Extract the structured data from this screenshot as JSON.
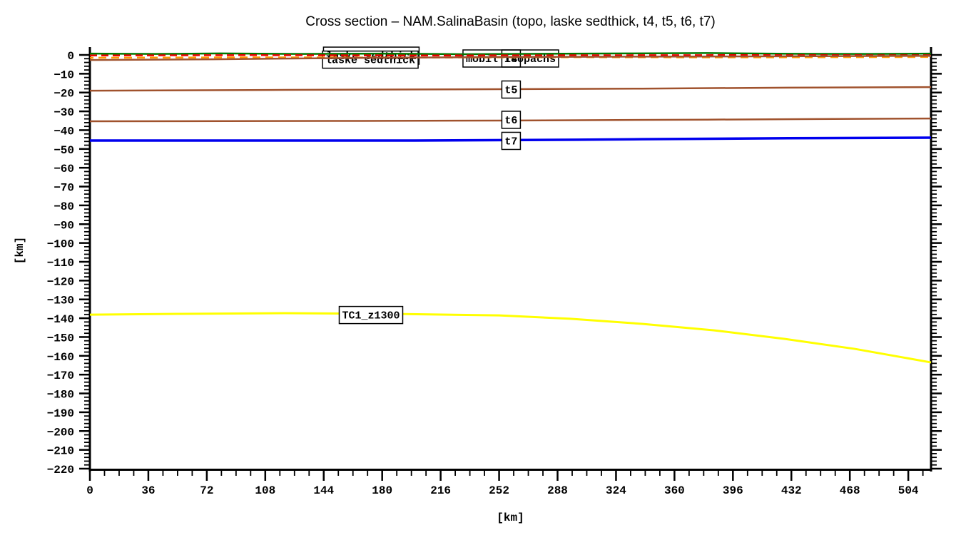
{
  "title": "Cross section – NAM.SalinaBasin (topo, laske sedthick, t4, t5, t6, t7)",
  "axes": {
    "x_label": "[km]",
    "y_label": "[km]",
    "x_major_ticks": [
      0,
      36,
      72,
      108,
      144,
      180,
      216,
      252,
      288,
      324,
      360,
      396,
      432,
      468,
      504
    ],
    "x_minor_step": 9,
    "x_max": 518,
    "y_major_ticks": [
      0,
      -10,
      -20,
      -30,
      -40,
      -50,
      -60,
      -70,
      -80,
      -90,
      -100,
      -110,
      -120,
      -130,
      -140,
      -150,
      -160,
      -170,
      -180,
      -190,
      -200,
      -210,
      -220
    ],
    "y_minor_step": 2,
    "y_max": 0,
    "y_min": -220
  },
  "chart_data": {
    "type": "line",
    "title": "Cross section – NAM.SalinaBasin (topo, laske sedthick, t4, t5, t6, t7)",
    "xlabel": "[km]",
    "ylabel": "[km]",
    "xlim": [
      0,
      518
    ],
    "ylim": [
      -220,
      0
    ],
    "grid": false,
    "legend": "boxed labels drawn on curves",
    "series": [
      {
        "id": "topo",
        "name": "topo",
        "color": "#007800",
        "width": 2.5,
        "x": [
          0,
          40,
          80,
          130,
          180,
          230,
          280,
          330,
          380,
          430,
          480,
          518
        ],
        "y": [
          0.7,
          0.5,
          0.8,
          0.5,
          0.7,
          0.4,
          0.6,
          0.8,
          1.0,
          0.6,
          0.5,
          0.7
        ]
      },
      {
        "id": "laske-sedthick",
        "name": "laske sedthick",
        "color": "#ee0000",
        "width": 2.5,
        "dash": "10 6",
        "x": [
          0,
          100,
          200,
          300,
          400,
          518
        ],
        "y": [
          -0.3,
          -0.1,
          -0.3,
          -0.2,
          -0.1,
          -0.2
        ]
      },
      {
        "id": "mobil-isopachs",
        "name": "mobil isopachs",
        "color": "#ff9800",
        "width": 2.5,
        "dash": "11 7",
        "dashoffset": 6,
        "x": [
          0,
          100,
          200,
          300,
          400,
          518
        ],
        "y": [
          -1.5,
          -1.3,
          -1.4,
          -1.2,
          -1.3,
          -1.1
        ]
      },
      {
        "id": "t4",
        "name": "t4",
        "color": "#a0522d",
        "width": 2.5,
        "x": [
          0,
          76,
          164,
          252,
          340,
          430,
          518
        ],
        "y": [
          -2.7,
          -2.3,
          -1.6,
          -1.1,
          -0.9,
          -0.7,
          -0.5
        ]
      },
      {
        "id": "t5",
        "name": "t5",
        "color": "#a0522d",
        "width": 2.5,
        "x": [
          0,
          120,
          252,
          340,
          430,
          518
        ],
        "y": [
          -19.0,
          -18.6,
          -18.2,
          -17.9,
          -17.4,
          -17.1
        ]
      },
      {
        "id": "t6",
        "name": "t6",
        "color": "#a0522d",
        "width": 2.5,
        "x": [
          0,
          150,
          252,
          380,
          518
        ],
        "y": [
          -35.3,
          -35.1,
          -34.9,
          -34.4,
          -33.8
        ]
      },
      {
        "id": "t7",
        "name": "t7",
        "color": "#0000ee",
        "width": 3.5,
        "x": [
          0,
          200,
          300,
          340,
          430,
          518
        ],
        "y": [
          -45.5,
          -45.5,
          -45.1,
          -44.8,
          -44.3,
          -44.0
        ]
      },
      {
        "id": "TC1-z1300",
        "name": "TC1_z1300",
        "color": "#ffff00",
        "width": 3,
        "x": [
          0,
          54,
          120,
          186,
          252,
          296,
          340,
          384,
          428,
          471,
          518
        ],
        "y": [
          -138.1,
          -137.7,
          -137.3,
          -137.7,
          -138.5,
          -140.3,
          -143.0,
          -146.4,
          -151.0,
          -156.3,
          -163.5
        ]
      }
    ],
    "annotations": [
      {
        "id": "laske-sedthick-a",
        "text": "laske sedthick",
        "x": 173.3,
        "y": -0.4,
        "layer": "under",
        "fill": "#ffffff"
      },
      {
        "id": "laske-sedthick-b",
        "text": "laske sedthick",
        "x": 172.7,
        "y": -2.5,
        "layer": "under",
        "fill": "#ffffff"
      },
      {
        "id": "mobil-isopachs",
        "text": "mobil isopachs",
        "x": 259.2,
        "y": -1.9,
        "layer": "under",
        "fill": "#ffffff"
      },
      {
        "id": "t4",
        "text": "t4",
        "x": 259.4,
        "y": -1.9,
        "layer": "under",
        "fill": "none"
      },
      {
        "id": "t5",
        "text": "t5",
        "x": 259.4,
        "y": -18.4,
        "layer": "over",
        "fill": "#ffffff"
      },
      {
        "id": "t6",
        "text": "t6",
        "x": 259.4,
        "y": -34.5,
        "layer": "over",
        "fill": "#ffffff"
      },
      {
        "id": "t7",
        "text": "t7",
        "x": 259.4,
        "y": -45.7,
        "layer": "over",
        "fill": "#ffffff"
      },
      {
        "id": "TC1-z1300",
        "text": "TC1_z1300",
        "x": 173.1,
        "y": -138.3,
        "layer": "over",
        "fill": "#ffffff"
      }
    ]
  }
}
